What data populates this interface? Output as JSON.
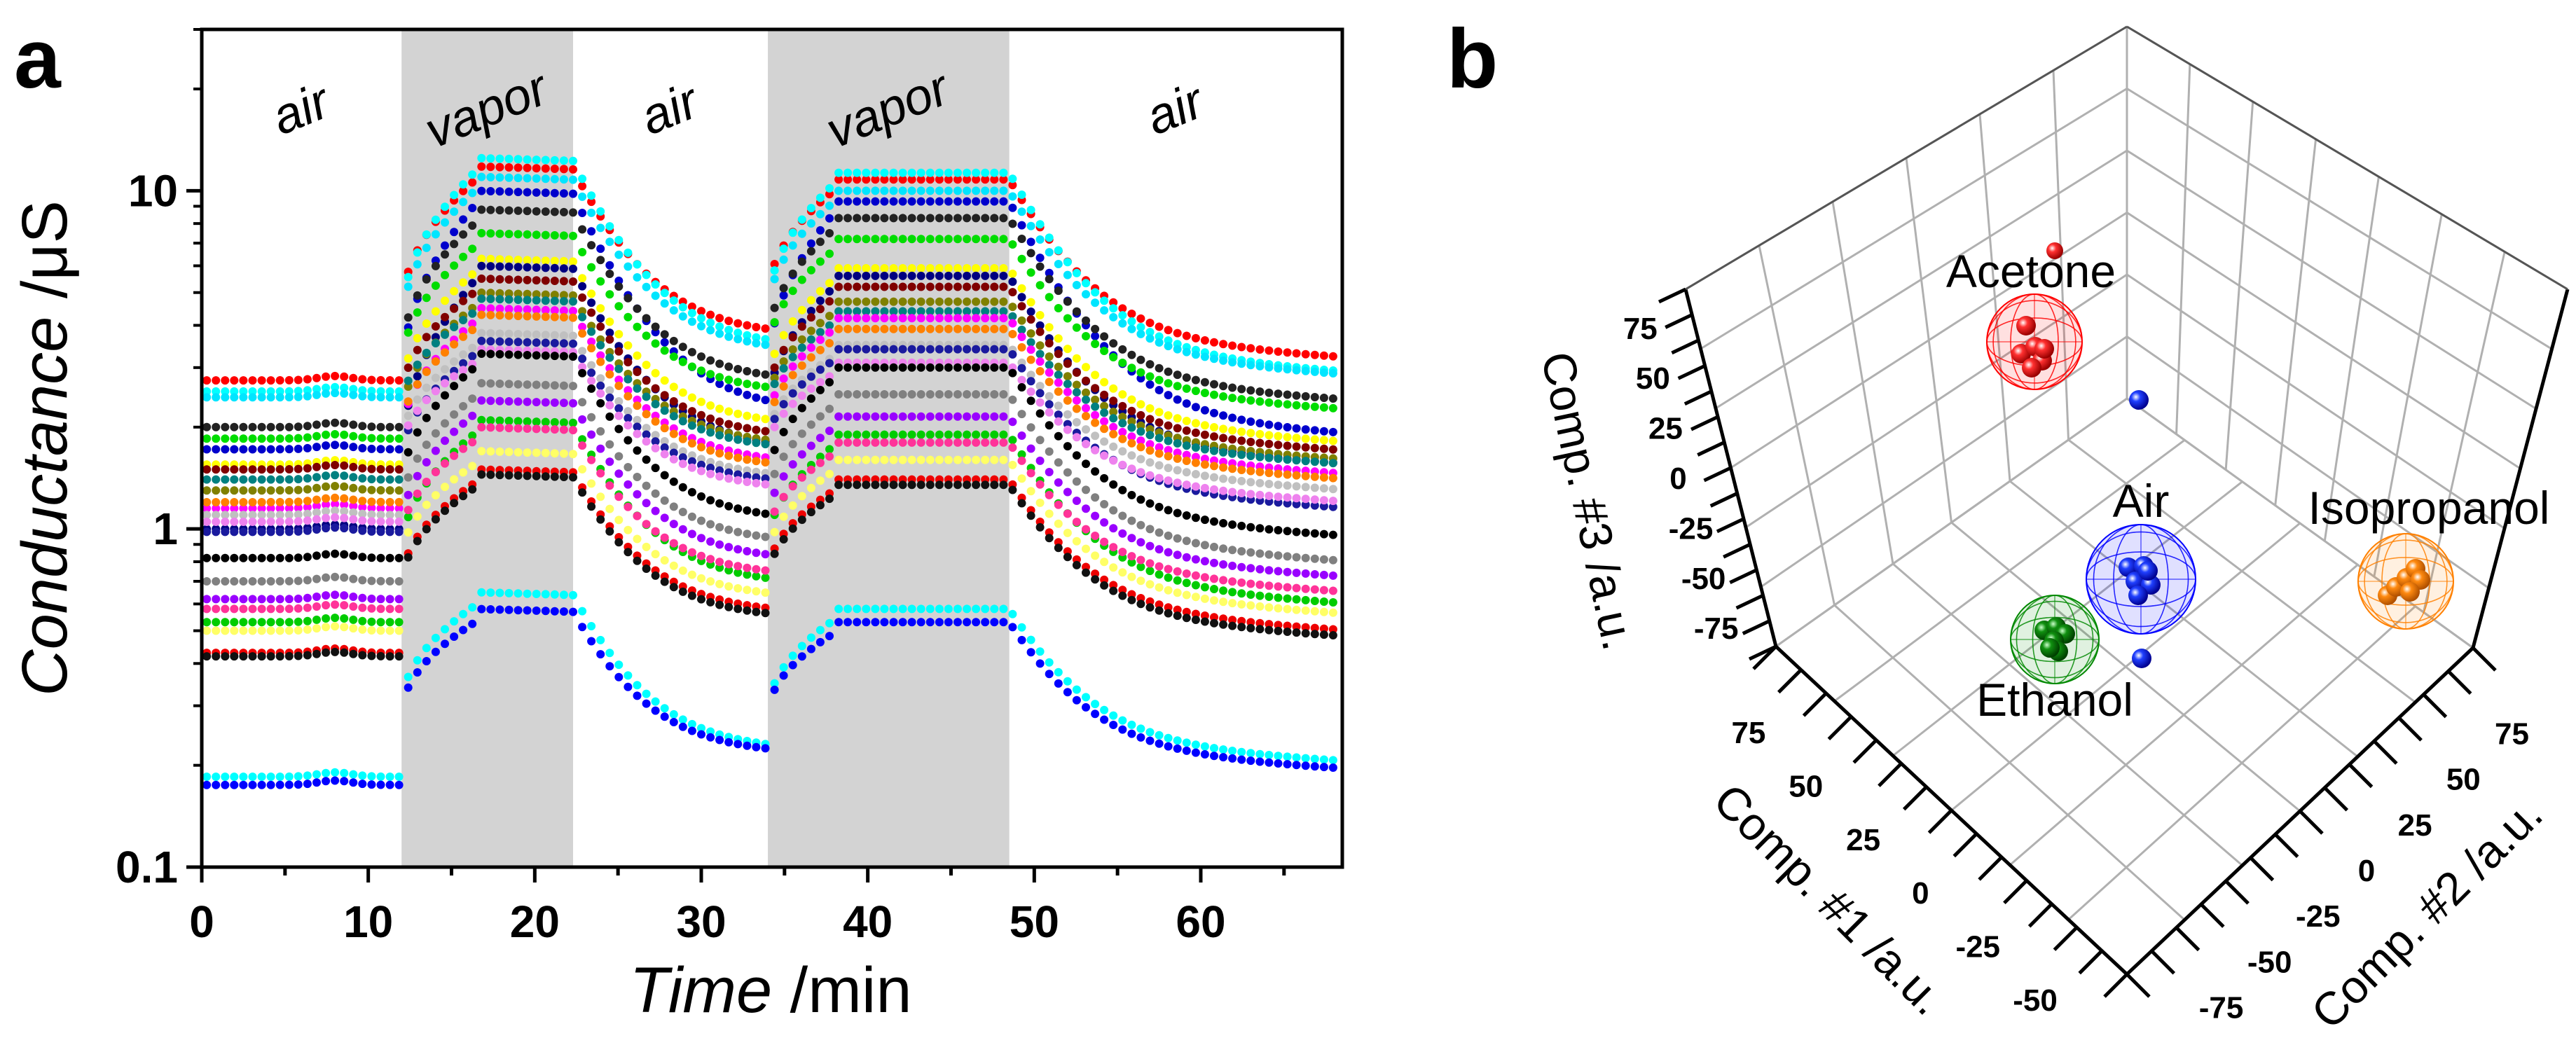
{
  "panel_labels": {
    "a": "a",
    "b": "b"
  },
  "chart_data": [
    {
      "type": "scatter",
      "panel": "a",
      "xlabel_italic": "Time",
      "xlabel_unit": " /min",
      "ylabel_italic": "Conductance",
      "ylabel_unit": " /μS",
      "xlim": [
        0,
        68.5
      ],
      "ylim": [
        0.1,
        30
      ],
      "yscale": "log",
      "xticks": [
        0,
        10,
        20,
        30,
        40,
        50,
        60
      ],
      "xtick_labels": [
        "0",
        "10",
        "20",
        "30",
        "40",
        "50",
        "60"
      ],
      "yticks": [
        0.1,
        1,
        10
      ],
      "ytick_labels": [
        "0.1",
        "1",
        "10"
      ],
      "regions": [
        {
          "label": "air",
          "start": 0,
          "end": 12,
          "shaded": false
        },
        {
          "label": "vapor",
          "start": 12,
          "end": 22.3,
          "shaded": true
        },
        {
          "label": "air",
          "start": 22.3,
          "end": 34,
          "shaded": false
        },
        {
          "label": "vapor",
          "start": 34,
          "end": 48.5,
          "shaded": true
        },
        {
          "label": "air",
          "start": 48.5,
          "end": 68.5,
          "shaded": false
        }
      ],
      "series_fields": [
        "baseline",
        "vapor1_plateau",
        "air2_end",
        "vapor2_plateau",
        "final"
      ],
      "series": [
        {
          "color": "#ff0000",
          "values": [
            2.75,
            11.8,
            3.7,
            10.8,
            3.2
          ]
        },
        {
          "color": "#00ffff",
          "values": [
            2.55,
            12.5,
            3.4,
            11.3,
            2.9
          ]
        },
        {
          "color": "#00e5ff",
          "values": [
            2.45,
            11.0,
            3.3,
            10.0,
            2.85
          ]
        },
        {
          "color": "#0000cc",
          "values": [
            1.72,
            10.0,
            2.2,
            9.3,
            1.9
          ]
        },
        {
          "color": "#222222",
          "values": [
            2.0,
            8.8,
            2.7,
            8.3,
            2.4
          ]
        },
        {
          "color": "#00dd00",
          "values": [
            1.85,
            7.5,
            2.5,
            7.2,
            2.25
          ]
        },
        {
          "color": "#ffff00",
          "values": [
            1.55,
            6.3,
            2.0,
            5.9,
            1.8
          ]
        },
        {
          "color": "#000080",
          "values": [
            1.0,
            6.0,
            1.7,
            5.6,
            1.55
          ]
        },
        {
          "color": "#800000",
          "values": [
            1.5,
            5.5,
            1.85,
            5.2,
            1.7
          ]
        },
        {
          "color": "#808000",
          "values": [
            1.3,
            5.0,
            1.75,
            4.7,
            1.6
          ]
        },
        {
          "color": "#008080",
          "values": [
            1.4,
            4.8,
            1.7,
            4.4,
            1.55
          ]
        },
        {
          "color": "#ff00ff",
          "values": [
            1.15,
            4.5,
            1.55,
            4.2,
            1.45
          ]
        },
        {
          "color": "#ff8000",
          "values": [
            1.2,
            4.3,
            1.5,
            3.9,
            1.4
          ]
        },
        {
          "color": "#c0c0c0",
          "values": [
            1.1,
            3.8,
            1.4,
            3.5,
            1.3
          ]
        },
        {
          "color": "#1a1a9e",
          "values": [
            0.98,
            3.6,
            1.35,
            3.4,
            1.15
          ]
        },
        {
          "color": "#ee82ee",
          "values": [
            1.05,
            3.4,
            1.3,
            3.1,
            1.2
          ]
        },
        {
          "color": "#000000",
          "values": [
            0.82,
            3.3,
            1.05,
            3.0,
            0.95
          ]
        },
        {
          "color": "#808080",
          "values": [
            0.7,
            2.7,
            0.9,
            2.5,
            0.8
          ]
        },
        {
          "color": "#9900ff",
          "values": [
            0.62,
            2.4,
            0.8,
            2.15,
            0.72
          ]
        },
        {
          "color": "#00cc00",
          "values": [
            0.53,
            2.1,
            0.68,
            1.9,
            0.6
          ]
        },
        {
          "color": "#ff3399",
          "values": [
            0.58,
            2.0,
            0.72,
            1.8,
            0.65
          ]
        },
        {
          "color": "#ffff66",
          "values": [
            0.5,
            1.7,
            0.62,
            1.6,
            0.56
          ]
        },
        {
          "color": "#ee0000",
          "values": [
            0.43,
            1.5,
            0.56,
            1.4,
            0.5
          ]
        },
        {
          "color": "#111111",
          "values": [
            0.42,
            1.45,
            0.54,
            1.35,
            0.48
          ]
        },
        {
          "color": "#00ffff",
          "values": [
            0.185,
            0.65,
            0.22,
            0.58,
            0.205
          ]
        },
        {
          "color": "#0000ff",
          "values": [
            0.175,
            0.58,
            0.215,
            0.53,
            0.195
          ]
        }
      ]
    },
    {
      "type": "scatter3d",
      "panel": "b",
      "axes": {
        "x": {
          "label": "Comp. #1 /a.u.",
          "ticks": [
            "75",
            "50",
            "25",
            "0",
            "-25",
            "-50"
          ]
        },
        "y": {
          "label": "Comp. #2 /a.u.",
          "ticks": [
            "-75",
            "-50",
            "-25",
            "0",
            "25",
            "50",
            "75"
          ]
        },
        "z": {
          "label": "Comp. #3 /a.u.",
          "ticks": [
            "75",
            "50",
            "25",
            "0",
            "-25",
            "-50",
            "-75"
          ]
        }
      },
      "clusters": [
        {
          "label": "Acetone",
          "color": "#ff0000"
        },
        {
          "label": "Air",
          "color": "#0000ff"
        },
        {
          "label": "Isopropanol",
          "color": "#ff8000"
        },
        {
          "label": "Ethanol",
          "color": "#008800"
        }
      ]
    }
  ]
}
